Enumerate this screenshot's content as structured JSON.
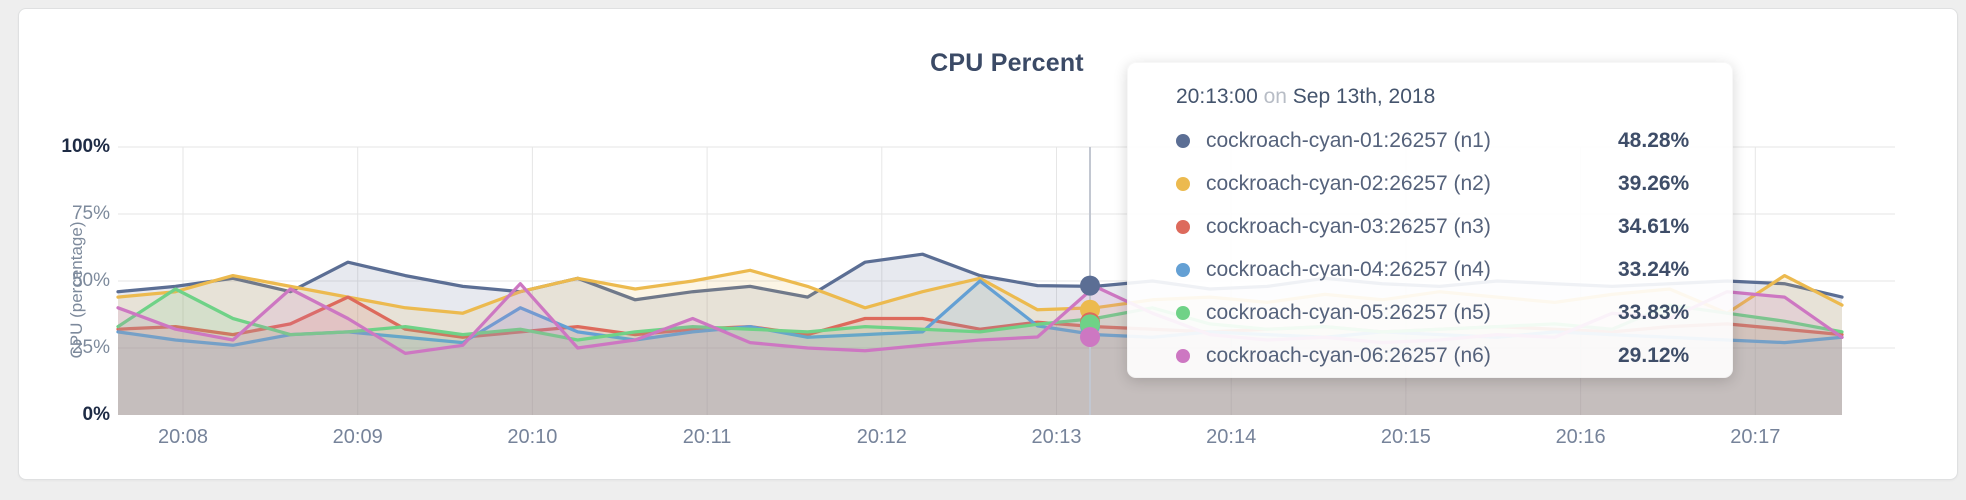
{
  "panel": {
    "background": "#ffffff",
    "page_background": "#eeeeee",
    "border_color": "#dfe0e1"
  },
  "chart": {
    "title": "CPU Percent",
    "y_axis": {
      "label": "CPU (percentage)",
      "ticks": [
        {
          "label": "0%",
          "value": 0,
          "emphasis": true
        },
        {
          "label": "25%",
          "value": 25,
          "emphasis": false
        },
        {
          "label": "50%",
          "value": 50,
          "emphasis": false
        },
        {
          "label": "75%",
          "value": 75,
          "emphasis": false
        },
        {
          "label": "100%",
          "value": 100,
          "emphasis": true
        }
      ]
    },
    "x_axis": {
      "ticks": [
        "20:08",
        "20:09",
        "20:10",
        "20:11",
        "20:12",
        "20:13",
        "20:14",
        "20:15",
        "20:16",
        "20:17"
      ]
    },
    "grid_color": "#e6e6e6",
    "crosshair_color": "#c2c7d1"
  },
  "tooltip": {
    "time": "20:13:00",
    "separator": "on",
    "date": "Sep 13th, 2018",
    "rows": [
      {
        "label": "cockroach-cyan-01:26257 (n1)",
        "value": "48.28%",
        "color": "#5b6e94"
      },
      {
        "label": "cockroach-cyan-02:26257 (n2)",
        "value": "39.26%",
        "color": "#ecba4f"
      },
      {
        "label": "cockroach-cyan-03:26257 (n3)",
        "value": "34.61%",
        "color": "#dd6a5c"
      },
      {
        "label": "cockroach-cyan-04:26257 (n4)",
        "value": "33.24%",
        "color": "#64a0d4"
      },
      {
        "label": "cockroach-cyan-05:26257 (n5)",
        "value": "33.83%",
        "color": "#6fd287"
      },
      {
        "label": "cockroach-cyan-06:26257 (n6)",
        "value": "29.12%",
        "color": "#cd77c2"
      }
    ]
  },
  "chart_data": {
    "type": "area",
    "title": "CPU Percent",
    "ylabel": "CPU (percentage)",
    "ylim": [
      0,
      100
    ],
    "y_tick_labels": [
      "0%",
      "25%",
      "50%",
      "75%",
      "100%"
    ],
    "x_tick_labels": [
      "20:08",
      "20:09",
      "20:10",
      "20:11",
      "20:12",
      "20:13",
      "20:14",
      "20:15",
      "20:16",
      "20:17"
    ],
    "x_start": "20:07:40",
    "x_step_seconds": 20,
    "grid": true,
    "legend_position": "tooltip",
    "hover_point_time": "20:13:00",
    "series": [
      {
        "name": "cockroach-cyan-01:26257 (n1)",
        "color": "#5b6e94",
        "values": [
          46,
          48,
          51,
          46,
          57,
          52,
          48,
          46,
          51,
          43,
          46,
          48,
          44,
          57,
          60,
          52,
          48.28,
          48,
          50,
          47,
          48,
          51,
          49,
          48,
          50,
          49,
          48,
          49,
          50,
          49,
          44
        ]
      },
      {
        "name": "cockroach-cyan-02:26257 (n2)",
        "color": "#ecba4f",
        "values": [
          44,
          46,
          52,
          48,
          44,
          40,
          38,
          46,
          51,
          47,
          50,
          54,
          48,
          40,
          46,
          51,
          39.26,
          40,
          43,
          44,
          42,
          45,
          43,
          46,
          44,
          42,
          45,
          47,
          38,
          52,
          41
        ]
      },
      {
        "name": "cockroach-cyan-03:26257 (n3)",
        "color": "#dd6a5c",
        "values": [
          32,
          33,
          30,
          34,
          44,
          32,
          29,
          31,
          33,
          30,
          32,
          33,
          30,
          36,
          36,
          32,
          34.61,
          33,
          32,
          31,
          32,
          33,
          31,
          32,
          33,
          32,
          31,
          33,
          34,
          32,
          30
        ]
      },
      {
        "name": "cockroach-cyan-04:26257 (n4)",
        "color": "#64a0d4",
        "values": [
          31,
          28,
          26,
          30,
          31,
          29,
          27,
          40,
          31,
          28,
          31,
          33,
          29,
          30,
          31,
          50,
          33.24,
          30,
          29,
          31,
          30,
          29,
          31,
          30,
          29,
          31,
          30,
          29,
          28,
          27,
          29
        ]
      },
      {
        "name": "cockroach-cyan-05:26257 (n5)",
        "color": "#6fd287",
        "values": [
          33,
          47,
          36,
          30,
          31,
          33,
          30,
          32,
          28,
          31,
          33,
          32,
          31,
          33,
          32,
          31,
          33.83,
          36,
          40,
          34,
          32,
          33,
          31,
          32,
          33,
          34,
          32,
          41,
          38,
          35,
          31
        ]
      },
      {
        "name": "cockroach-cyan-06:26257 (n6)",
        "color": "#cd77c2",
        "values": [
          40,
          32,
          28,
          47,
          36,
          23,
          26,
          49,
          25,
          28,
          36,
          27,
          25,
          24,
          26,
          28,
          29.12,
          48,
          38,
          30,
          28,
          29,
          27,
          28,
          30,
          29,
          38,
          36,
          46,
          44,
          29
        ]
      }
    ]
  }
}
